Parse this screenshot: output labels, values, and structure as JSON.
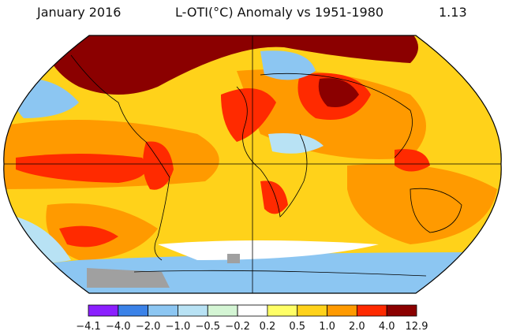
{
  "header": {
    "date": "January 2016",
    "title": "L-OTI(°C) Anomaly vs 1951-1980",
    "global_mean": "1.13"
  },
  "legend": {
    "colors": [
      "#8b20ff",
      "#3b82e8",
      "#8cc6f2",
      "#b8e2f4",
      "#d4f5d4",
      "#ffffff",
      "#ffff66",
      "#ffd21a",
      "#ff9a00",
      "#ff2a00",
      "#8b0000"
    ],
    "labels": [
      "−4.1",
      "−4.0",
      "−2.0",
      "−1.0",
      "−0.5",
      "−0.2",
      "0.2",
      "0.5",
      "1.0",
      "2.0",
      "4.0",
      "12.9"
    ]
  },
  "map": {
    "projection": "robinson",
    "missing_data_color": "#a0a0a0",
    "coastline_color": "#000000"
  }
}
